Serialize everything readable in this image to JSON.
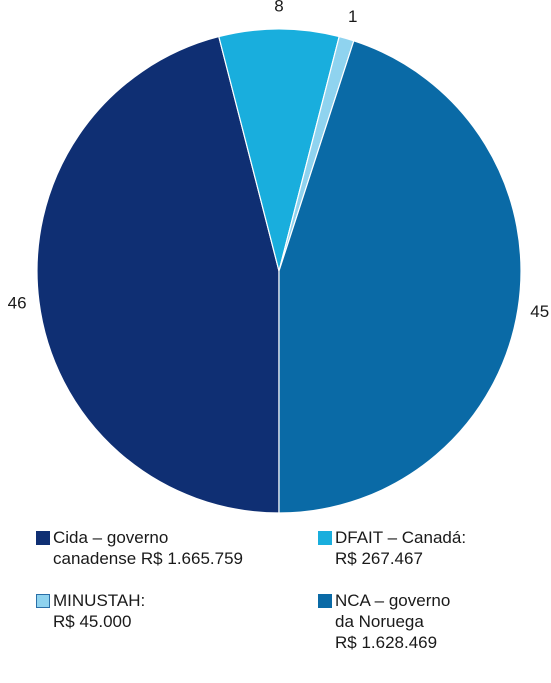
{
  "chart_data": {
    "type": "pie",
    "categories": [
      "Cida – governo canadense",
      "DFAIT – Canadá",
      "MINUSTAH",
      "NCA – governo da Noruega"
    ],
    "values": [
      46,
      8,
      1,
      45
    ],
    "value_labels": [
      "46",
      "8",
      "1",
      "45"
    ],
    "colors": [
      "#0f2f73",
      "#19aedd",
      "#8fd3ef",
      "#0a6aa6"
    ],
    "slice_order_clockwise_from_bottom": [
      "Cida – governo canadense",
      "DFAIT – Canadá",
      "MINUSTAH",
      "NCA – governo da Noruega"
    ],
    "title": "",
    "legend": [
      {
        "text": "Cida  – governo\ncanadense R$ 1.665.759",
        "color": "#0f2f73"
      },
      {
        "text": "DFAIT – Canadá:\nR$ 267.467",
        "color": "#19aedd"
      },
      {
        "text": "MINUSTAH:\nR$ 45.000",
        "color": "#8fd3ef"
      },
      {
        "text": "NCA – governo\nda Noruega\nR$ 1.628.469",
        "color": "#0a6aa6"
      }
    ],
    "legend_placement": "bottom"
  }
}
